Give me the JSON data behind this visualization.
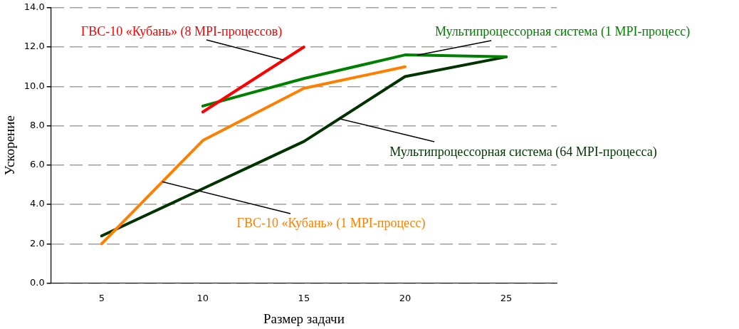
{
  "chart_data": {
    "type": "line",
    "xlabel": "Размер задачи",
    "ylabel": "Ускорение",
    "categories": [
      "5",
      "10",
      "15",
      "20",
      "25"
    ],
    "series": [
      {
        "name": "ГВС-10 «Кубань» (8 MPI-процессов)",
        "color": "#ff0000",
        "values": [
          null,
          8.7,
          12.0,
          null,
          null
        ]
      },
      {
        "name": "Мультипроцессорная система (1 MPI-процесс)",
        "color": "#008000",
        "values": [
          null,
          9.0,
          10.4,
          11.6,
          11.5
        ]
      },
      {
        "name": "ГВС-10 «Кубань» (1 MPI-процесс)",
        "color": "#ff8000",
        "values": [
          2.0,
          7.25,
          9.9,
          11.0,
          null
        ]
      },
      {
        "name": "Мультипроцессорная система (64 MPI-процесса)",
        "color": "#003300",
        "values": [
          2.4,
          4.8,
          7.2,
          10.5,
          11.5
        ]
      }
    ],
    "ylim": [
      0,
      14
    ],
    "yticks": [
      {
        "value": 0,
        "label": "0.0"
      },
      {
        "value": 2,
        "label": "2.0"
      },
      {
        "value": 4,
        "label": "4.0"
      },
      {
        "value": 6,
        "label": "6.0"
      },
      {
        "value": 8,
        "label": "8.0"
      },
      {
        "value": 10,
        "label": "10.0"
      },
      {
        "value": 12,
        "label": "12.0"
      },
      {
        "value": 14,
        "label": "14.0"
      }
    ],
    "grid": "y",
    "legend": false,
    "marker": "none",
    "line_style": "solid"
  }
}
